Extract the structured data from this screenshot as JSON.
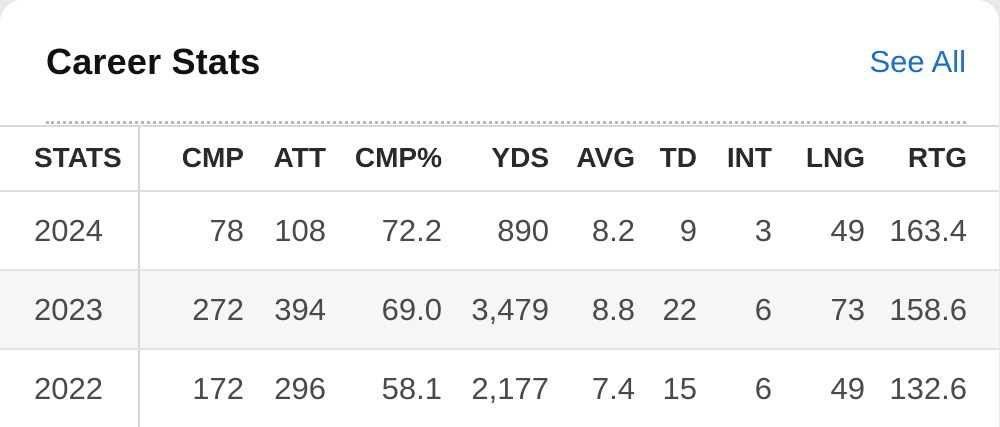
{
  "header": {
    "title": "Career Stats",
    "see_all_label": "See All"
  },
  "table": {
    "columns": [
      "STATS",
      "CMP",
      "ATT",
      "CMP%",
      "YDS",
      "AVG",
      "TD",
      "INT",
      "LNG",
      "RTG"
    ],
    "rows": [
      [
        "2024",
        "78",
        "108",
        "72.2",
        "890",
        "8.2",
        "9",
        "3",
        "49",
        "163.4"
      ],
      [
        "2023",
        "272",
        "394",
        "69.0",
        "3,479",
        "8.8",
        "22",
        "6",
        "73",
        "158.6"
      ],
      [
        "2022",
        "172",
        "296",
        "58.1",
        "2,177",
        "7.4",
        "15",
        "6",
        "49",
        "132.6"
      ]
    ]
  },
  "colors": {
    "accent_link": "#1a6ecc",
    "title_text": "#111111",
    "cell_text": "#4a4a4a",
    "alt_row_bg": "#f6f6f6"
  }
}
